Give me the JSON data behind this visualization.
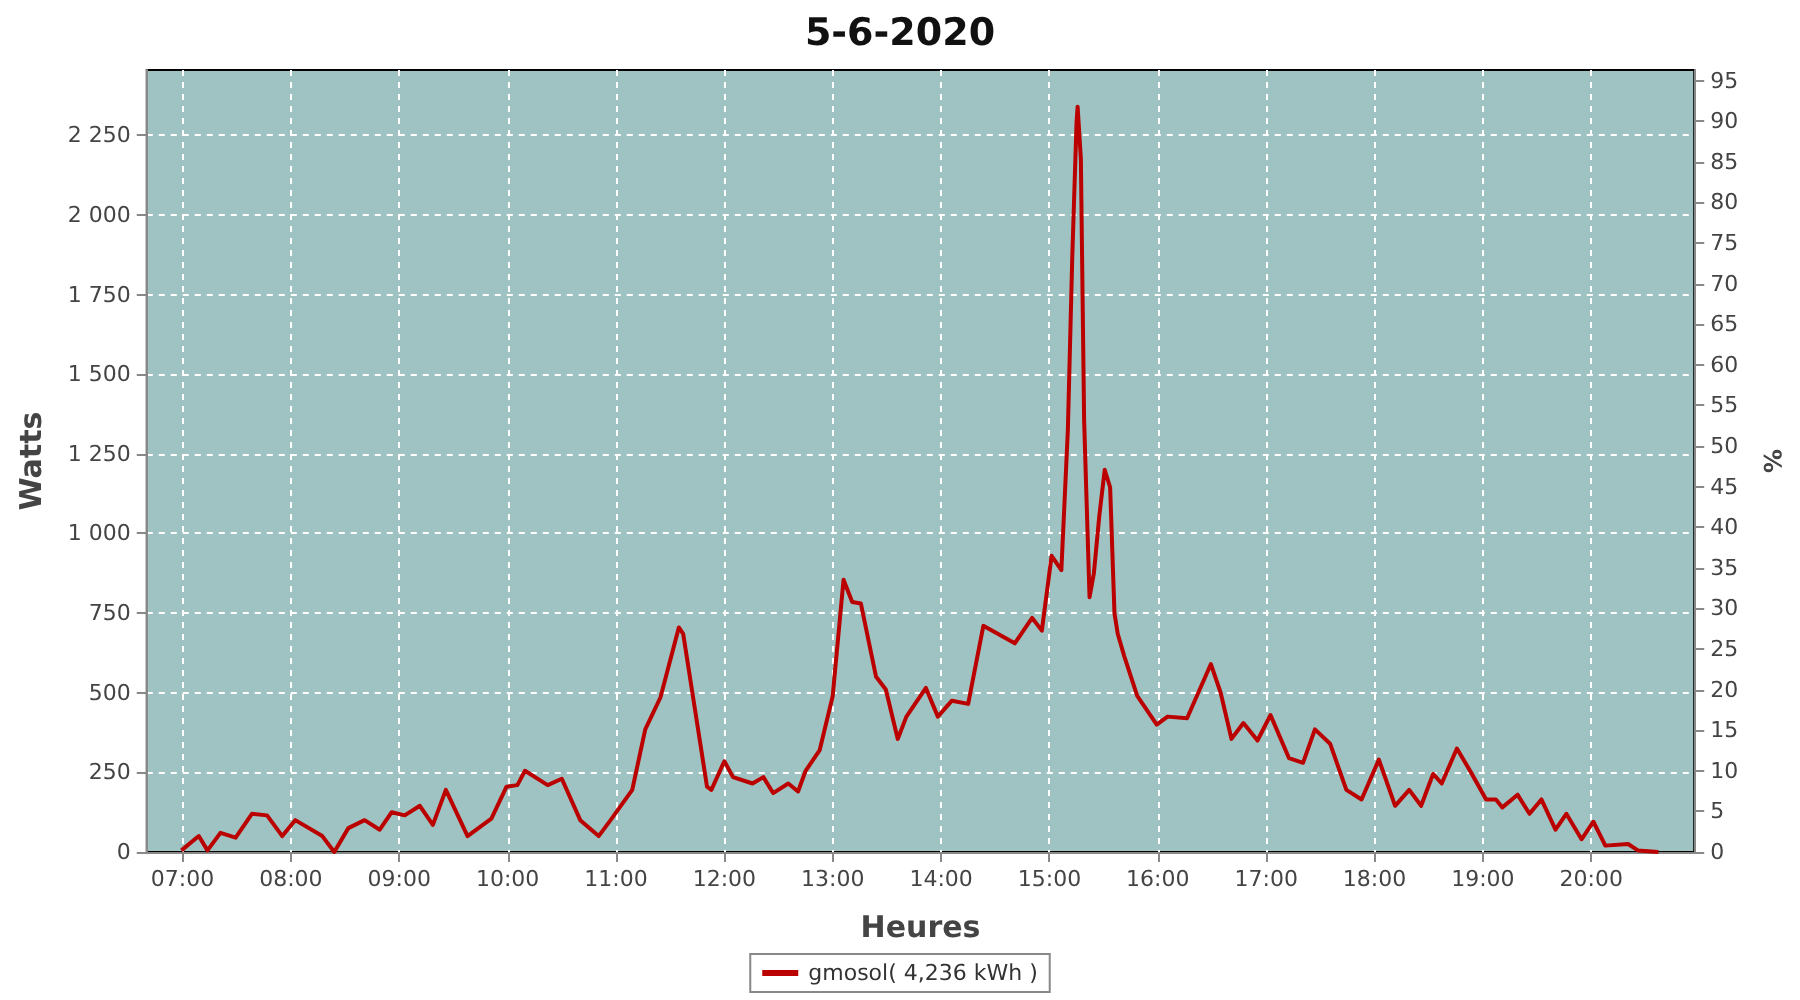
{
  "chart_data": {
    "type": "line",
    "title": "5-6-2020",
    "xlabel": "Heures",
    "ylabel": "Watts",
    "y2label": "%",
    "x": [
      6.99,
      7.15,
      7.23,
      7.35,
      7.49,
      7.64,
      7.78,
      7.92,
      8.04,
      8.29,
      8.4,
      8.53,
      8.68,
      8.82,
      8.93,
      9.05,
      9.19,
      9.31,
      9.43,
      9.63,
      9.85,
      9.99,
      10.09,
      10.16,
      10.37,
      10.5,
      10.67,
      10.84,
      10.95,
      11.15,
      11.27,
      11.41,
      11.58,
      11.62,
      11.84,
      11.88,
      12.0,
      12.08,
      12.26,
      12.36,
      12.45,
      12.59,
      12.68,
      12.75,
      12.88,
      13.0,
      13.1,
      13.18,
      13.26,
      13.4,
      13.49,
      13.6,
      13.68,
      13.86,
      13.97,
      14.1,
      14.25,
      14.39,
      14.68,
      14.84,
      14.93,
      15.02,
      15.11,
      15.17,
      15.21,
      15.25,
      15.26,
      15.29,
      15.32,
      15.37,
      15.41,
      15.46,
      15.51,
      15.56,
      15.6,
      15.63,
      15.69,
      15.81,
      15.99,
      16.09,
      16.27,
      16.49,
      16.58,
      16.68,
      16.79,
      16.92,
      17.04,
      17.21,
      17.34,
      17.45,
      17.59,
      17.74,
      17.88,
      18.04,
      18.19,
      18.32,
      18.43,
      18.54,
      18.62,
      18.76,
      18.89,
      19.03,
      19.12,
      19.18,
      19.32,
      19.43,
      19.54,
      19.67,
      19.77,
      19.91,
      20.02,
      20.13,
      20.34,
      20.43,
      20.62
    ],
    "series": [
      {
        "name": "gmosol( 4,236 kWh )",
        "color": "#bb0000",
        "values": [
          5,
          50,
          5,
          60,
          45,
          120,
          115,
          50,
          100,
          50,
          0,
          75,
          100,
          70,
          125,
          115,
          145,
          85,
          195,
          50,
          105,
          205,
          210,
          255,
          210,
          230,
          100,
          50,
          100,
          195,
          385,
          485,
          705,
          685,
          205,
          195,
          285,
          235,
          215,
          235,
          185,
          215,
          190,
          255,
          320,
          490,
          855,
          785,
          780,
          550,
          510,
          355,
          425,
          515,
          425,
          475,
          465,
          710,
          655,
          735,
          695,
          930,
          885,
          1325,
          1860,
          2290,
          2340,
          2175,
          1355,
          800,
          875,
          1055,
          1200,
          1145,
          750,
          685,
          615,
          490,
          400,
          425,
          420,
          590,
          500,
          355,
          405,
          350,
          430,
          295,
          280,
          385,
          340,
          195,
          165,
          290,
          145,
          195,
          145,
          245,
          215,
          325,
          250,
          165,
          165,
          140,
          180,
          120,
          165,
          70,
          120,
          40,
          95,
          20,
          25,
          5,
          0
        ]
      }
    ],
    "xlim": [
      6.67,
      20.95
    ],
    "xticks": [
      {
        "value": 7,
        "label": "07:00"
      },
      {
        "value": 8,
        "label": "08:00"
      },
      {
        "value": 9,
        "label": "09:00"
      },
      {
        "value": 10,
        "label": "10:00"
      },
      {
        "value": 11,
        "label": "11:00"
      },
      {
        "value": 12,
        "label": "12:00"
      },
      {
        "value": 13,
        "label": "13:00"
      },
      {
        "value": 14,
        "label": "14:00"
      },
      {
        "value": 15,
        "label": "15:00"
      },
      {
        "value": 16,
        "label": "16:00"
      },
      {
        "value": 17,
        "label": "17:00"
      },
      {
        "value": 18,
        "label": "18:00"
      },
      {
        "value": 19,
        "label": "19:00"
      },
      {
        "value": 20,
        "label": "20:00"
      }
    ],
    "ylim": [
      0,
      2455
    ],
    "yticks": [
      0,
      250,
      500,
      750,
      {
        "value": 1000,
        "label": "1 000"
      },
      {
        "value": 1250,
        "label": "1 250"
      },
      {
        "value": 1500,
        "label": "1 500"
      },
      {
        "value": 1750,
        "label": "1 750"
      },
      {
        "value": 2000,
        "label": "2 000"
      },
      {
        "value": 2250,
        "label": "2 250"
      }
    ],
    "y2lim": [
      0,
      96.3
    ],
    "y2ticks": [
      0,
      5,
      10,
      15,
      20,
      25,
      30,
      35,
      40,
      45,
      50,
      55,
      60,
      65,
      70,
      75,
      80,
      85,
      90,
      95
    ],
    "grid": true,
    "legend": "bottom",
    "marker": "none",
    "line_style": "solid"
  }
}
